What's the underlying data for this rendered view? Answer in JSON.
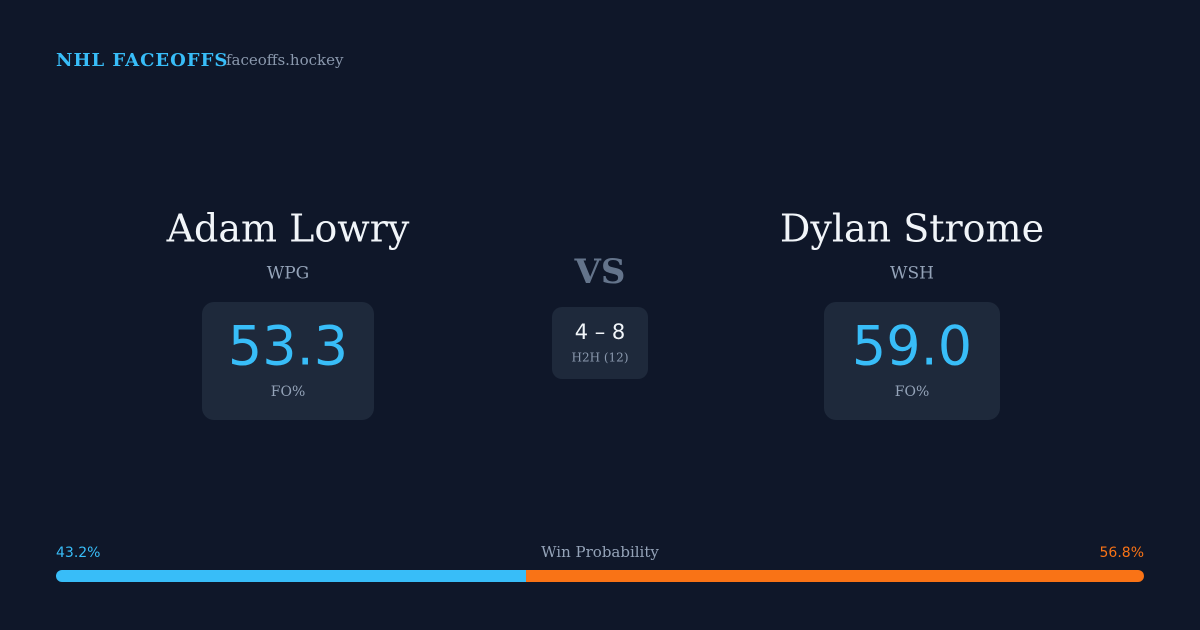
{
  "header": {
    "brand": "NHL FACEOFFS",
    "site": "faceoffs.hockey"
  },
  "players": [
    {
      "name": "Adam Lowry",
      "team": "WPG",
      "fo_value": "53.3",
      "fo_label": "FO%"
    },
    {
      "name": "Dylan Strome",
      "team": "WSH",
      "fo_value": "59.0",
      "fo_label": "FO%"
    }
  ],
  "vs": "VS",
  "h2h": {
    "score": "4 – 8",
    "label": "H2H (12)"
  },
  "win_probability": {
    "label": "Win Probability",
    "values": [
      43.2,
      56.8
    ],
    "value_labels": [
      "43.2%",
      "56.8%"
    ],
    "colors": [
      "#38bdf8",
      "#f97316"
    ]
  }
}
